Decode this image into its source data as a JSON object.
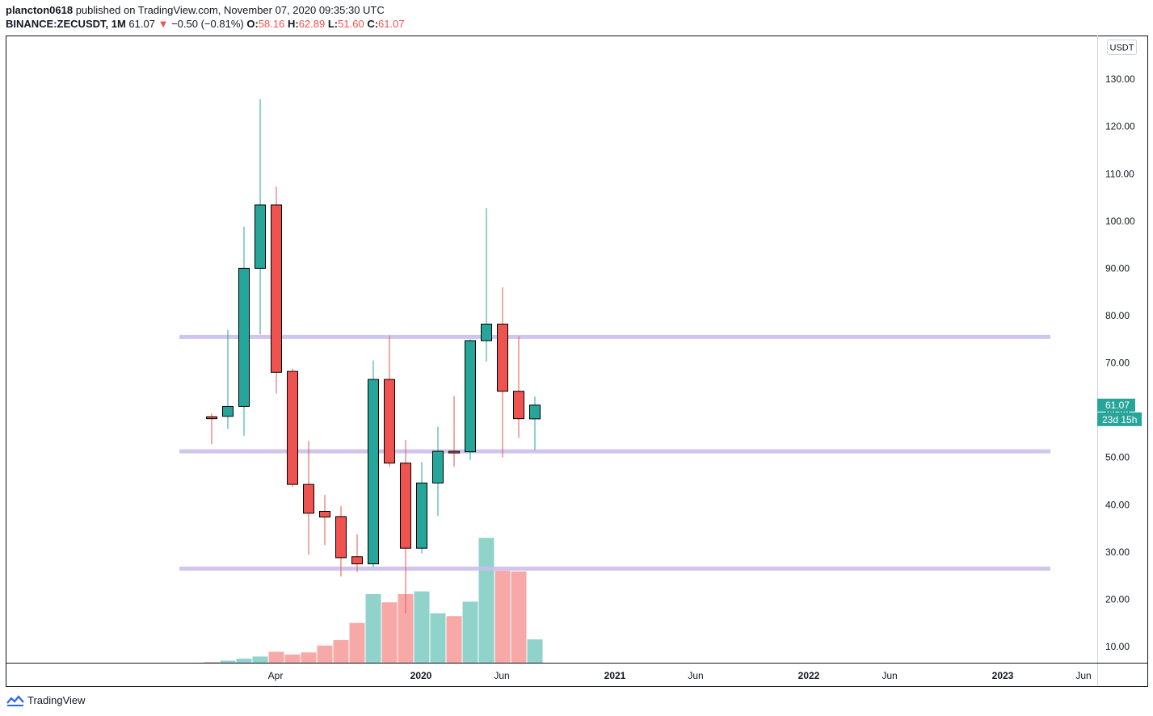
{
  "header": {
    "user": "plancton0618",
    "published": " published on TradingView.com, November 07, 2020 09:35:30 UTC",
    "symbol": "BINANCE:ZECUSDT, 1M",
    "last": "61.07",
    "arrow": "▼",
    "change": "−0.50 (−0.81%)",
    "o_label": "O:",
    "o_value": "58.16",
    "h_label": "H:",
    "h_value": "62.89",
    "l_label": "L:",
    "l_value": "51.60",
    "c_label": "C:",
    "c_value": "61.07"
  },
  "footer": {
    "brand": "TradingView"
  },
  "chart_data": {
    "type": "candlestick",
    "currency_label": "USDT",
    "y_ticks": [
      "130.00",
      "120.00",
      "110.00",
      "100.00",
      "90.00",
      "80.00",
      "70.00",
      "60.00",
      "50.00",
      "40.00",
      "30.00",
      "20.00",
      "10.00"
    ],
    "x_ticks": [
      {
        "label": "Apr",
        "month": 3,
        "bold": false
      },
      {
        "label": "2020",
        "month": 12,
        "bold": true
      },
      {
        "label": "Jun",
        "month": 17,
        "bold": false
      },
      {
        "label": "2021",
        "month": 24,
        "bold": true
      },
      {
        "label": "Jun",
        "month": 29,
        "bold": false
      },
      {
        "label": "2022",
        "month": 36,
        "bold": true
      },
      {
        "label": "Jun",
        "month": 41,
        "bold": false
      },
      {
        "label": "2023",
        "month": 48,
        "bold": true
      },
      {
        "label": "Jun",
        "month": 53,
        "bold": false
      }
    ],
    "candles": [
      {
        "month": "2019-03",
        "o": 58.6,
        "h": 59.3,
        "l": 52.8,
        "c": 58.2
      },
      {
        "month": "2019-04",
        "o": 58.7,
        "h": 77.0,
        "l": 56.0,
        "c": 60.8
      },
      {
        "month": "2019-05",
        "o": 60.8,
        "h": 98.8,
        "l": 54.6,
        "c": 90.0
      },
      {
        "month": "2019-06",
        "o": 90.0,
        "h": 125.8,
        "l": 76.0,
        "c": 103.4
      },
      {
        "month": "2019-07",
        "o": 103.4,
        "h": 107.3,
        "l": 63.5,
        "c": 68.0
      },
      {
        "month": "2019-08",
        "o": 68.2,
        "h": 68.8,
        "l": 43.8,
        "c": 44.3
      },
      {
        "month": "2019-09",
        "o": 44.3,
        "h": 53.5,
        "l": 29.4,
        "c": 38.2
      },
      {
        "month": "2019-10",
        "o": 38.6,
        "h": 42.1,
        "l": 31.5,
        "c": 37.4
      },
      {
        "month": "2019-11",
        "o": 37.5,
        "h": 39.7,
        "l": 24.8,
        "c": 28.8
      },
      {
        "month": "2019-12",
        "o": 29.0,
        "h": 33.7,
        "l": 25.8,
        "c": 27.5
      },
      {
        "month": "2020-01",
        "o": 27.5,
        "h": 70.5,
        "l": 26.8,
        "c": 66.5
      },
      {
        "month": "2020-02",
        "o": 66.5,
        "h": 75.8,
        "l": 48.0,
        "c": 48.8
      },
      {
        "month": "2020-03",
        "o": 48.8,
        "h": 53.7,
        "l": 17.0,
        "c": 30.8
      },
      {
        "month": "2020-04",
        "o": 30.8,
        "h": 49.0,
        "l": 29.7,
        "c": 44.6
      },
      {
        "month": "2020-05",
        "o": 44.6,
        "h": 56.5,
        "l": 37.6,
        "c": 51.3
      },
      {
        "month": "2020-06",
        "o": 51.3,
        "h": 63.0,
        "l": 48.0,
        "c": 51.1
      },
      {
        "month": "2020-07",
        "o": 51.2,
        "h": 75.0,
        "l": 49.5,
        "c": 74.7
      },
      {
        "month": "2020-08",
        "o": 74.7,
        "h": 102.7,
        "l": 70.3,
        "c": 78.2
      },
      {
        "month": "2020-09",
        "o": 78.2,
        "h": 86.0,
        "l": 50.0,
        "c": 64.0
      },
      {
        "month": "2020-10",
        "o": 64.0,
        "h": 75.6,
        "l": 54.1,
        "c": 58.2
      },
      {
        "month": "2020-11",
        "o": 58.16,
        "h": 62.89,
        "l": 51.6,
        "c": 61.07
      }
    ],
    "volume_relative": [
      0.01,
      0.03,
      0.06,
      0.09,
      0.16,
      0.12,
      0.15,
      0.25,
      0.33,
      0.58,
      1.0,
      0.88,
      1.0,
      1.04,
      0.72,
      0.68,
      0.89,
      1.82,
      1.34,
      1.33,
      0.34
    ],
    "horizontal_levels": [
      75.5,
      51.3,
      26.5
    ],
    "price_label": "61.07",
    "countdown_label": "23d 15h",
    "colors": {
      "up": "#26a69a",
      "down": "#ef5350",
      "up_volume": "#8fd3cb",
      "down_volume": "#f7a9a7",
      "level_line": "#cbbfeb",
      "border": "#131722",
      "text": "#131722"
    }
  }
}
